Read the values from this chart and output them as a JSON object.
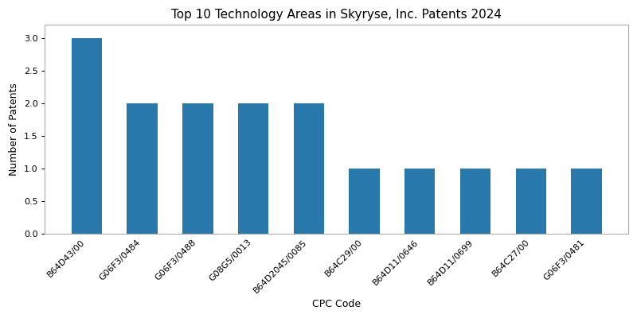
{
  "title": "Top 10 Technology Areas in Skyryse, Inc. Patents 2024",
  "xlabel": "CPC Code",
  "ylabel": "Number of Patents",
  "categories": [
    "B64D43/00",
    "G06F3/0484",
    "G06F3/0488",
    "G08G5/0013",
    "B64D2045/0085",
    "B64C29/00",
    "B64D11/0646",
    "B64D11/0699",
    "B64C27/00",
    "G06F3/0481"
  ],
  "values": [
    3,
    2,
    2,
    2,
    2,
    1,
    1,
    1,
    1,
    1
  ],
  "bar_color": "#2878ab",
  "ylim": [
    0,
    3.2
  ],
  "yticks": [
    0.0,
    0.5,
    1.0,
    1.5,
    2.0,
    2.5,
    3.0
  ],
  "title_fontsize": 11,
  "axis_label_fontsize": 9,
  "tick_fontsize": 8,
  "figsize": [
    8.0,
    4.0
  ],
  "dpi": 100,
  "bar_width": 0.55
}
